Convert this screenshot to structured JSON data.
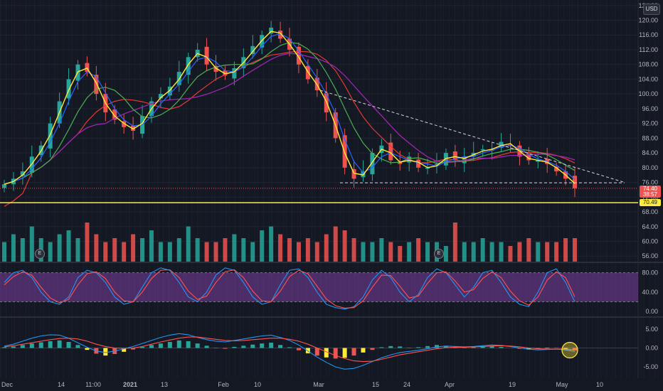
{
  "currency_badge": "USD",
  "price_tags": {
    "last": "74.40",
    "countdown": "38:57",
    "level": "70.49"
  },
  "earnings_marker": "E",
  "colors": {
    "up": "#26a69a",
    "down": "#ef5350",
    "ema_fast": "#ffeb3b",
    "ema_mid": "#2962ff",
    "sma_50": "#4caf50",
    "sma_100": "#9c27b0",
    "sma_200": "#e53935",
    "level_line": "#ffeb3b",
    "stoch_k": "#2196f3",
    "stoch_d": "#ff5252",
    "stoch_band": "#7b3fa0",
    "macd_line": "#2196f3",
    "signal_line": "#ff5252",
    "hist_pos": "#26a69a",
    "hist_neg": "#ffeb3b",
    "hist_neg2": "#ef5350"
  },
  "chart_data": [
    {
      "type": "candlestick",
      "pane": "price",
      "y_ticks": [
        124.0,
        120.0,
        116.0,
        112.0,
        108.0,
        104.0,
        100.0,
        96.0,
        92.0,
        88.0,
        84.0,
        80.0,
        76.0,
        72.0,
        68.0,
        64.0,
        60.0,
        56.0
      ],
      "y_tick_labels": [
        "124.00",
        "120.00",
        "116.00",
        "112.00",
        "108.00",
        "104.00",
        "100.00",
        "96.00",
        "92.00",
        "88.00",
        "84.00",
        "80.00",
        "76.00",
        "72.00",
        "68.00",
        "64.00",
        "60.00",
        "56.00"
      ],
      "ylim": [
        54.5,
        125.5
      ],
      "x_labels": [
        "Dec",
        "14",
        "11:00",
        "2021",
        "13",
        "Feb",
        "10",
        "Mar",
        "15",
        "24",
        "Apr",
        "19",
        "May",
        "10"
      ],
      "close_path": [
        75.5,
        77,
        79,
        83,
        86,
        92,
        98,
        104,
        108,
        106,
        100,
        95,
        93,
        91,
        90,
        94,
        98,
        100,
        102,
        106,
        110,
        112,
        108,
        106,
        105,
        107,
        110,
        113,
        116,
        118,
        115,
        112,
        108,
        104,
        101,
        95,
        88,
        80,
        77,
        79,
        84,
        86,
        82,
        81,
        83,
        80,
        80,
        81,
        84,
        82,
        83,
        84,
        85,
        85,
        87,
        86,
        83,
        82,
        82,
        81,
        79,
        77,
        74.4
      ],
      "last_close": 74.4,
      "levels": [
        {
          "value": 70.49,
          "label": "70.49"
        },
        {
          "value": 75.9,
          "label": ""
        }
      ],
      "trendline": {
        "from": [
          101,
          "Mar"
        ],
        "to": [
          76,
          "May"
        ]
      },
      "indicators": [
        "EMA fast",
        "EMA mid",
        "SMA 50",
        "SMA 100",
        "SMA 200"
      ]
    },
    {
      "type": "bar",
      "pane": "volume",
      "series": [
        {
          "values": [
            0.5,
            0.7,
            0.6,
            0.9,
            0.6,
            0.5,
            0.7,
            0.8,
            0.6,
            1.0,
            0.7,
            0.5,
            0.6,
            0.5,
            0.7,
            0.6,
            0.8,
            0.5,
            0.5,
            0.6,
            0.9,
            0.6,
            0.5,
            0.5,
            0.6,
            0.7,
            0.6,
            0.5,
            0.8,
            0.9,
            0.7,
            0.6,
            0.5,
            0.6,
            0.5,
            0.7,
            0.9,
            0.8,
            0.6,
            0.5,
            0.5,
            0.6,
            0.5,
            0.4,
            0.5,
            0.6,
            0.5,
            0.5,
            0.4,
            1.0,
            0.5,
            0.5,
            0.6,
            0.5,
            0.5,
            0.4,
            0.5,
            0.6,
            0.5,
            0.5,
            0.5,
            0.6,
            0.6
          ]
        }
      ]
    },
    {
      "type": "line",
      "pane": "stochastic",
      "y_ticks": [
        80.0,
        40.0,
        0.0
      ],
      "y_tick_labels": [
        "80.00",
        "40.00",
        "0.00"
      ],
      "ylim": [
        -10,
        100
      ],
      "band": [
        20,
        80
      ],
      "series": [
        {
          "name": "",
          "values": [
            60,
            80,
            85,
            70,
            40,
            20,
            15,
            30,
            70,
            85,
            80,
            60,
            30,
            15,
            20,
            50,
            80,
            90,
            85,
            60,
            30,
            20,
            40,
            75,
            90,
            85,
            60,
            30,
            15,
            20,
            55,
            85,
            88,
            70,
            40,
            15,
            8,
            5,
            10,
            30,
            65,
            85,
            70,
            40,
            20,
            35,
            70,
            88,
            80,
            55,
            30,
            50,
            80,
            85,
            60,
            30,
            15,
            10,
            40,
            80,
            88,
            60,
            20
          ]
        },
        {
          "name": "",
          "values": [
            55,
            72,
            82,
            75,
            50,
            28,
            18,
            25,
            55,
            78,
            82,
            68,
            40,
            22,
            20,
            40,
            68,
            85,
            86,
            70,
            42,
            25,
            32,
            60,
            82,
            86,
            70,
            42,
            22,
            20,
            42,
            72,
            85,
            78,
            52,
            26,
            12,
            7,
            8,
            22,
            50,
            75,
            74,
            52,
            28,
            32,
            58,
            80,
            82,
            63,
            40,
            45,
            68,
            82,
            70,
            42,
            22,
            13,
            30,
            65,
            82,
            70,
            30
          ]
        }
      ]
    },
    {
      "type": "bar",
      "pane": "macd",
      "y_ticks": [
        5.0,
        0.0,
        -5.0
      ],
      "y_tick_labels": [
        "5.00",
        "0.00",
        "-5.00"
      ],
      "ylim": [
        -8,
        8
      ],
      "histogram": [
        0.2,
        0.4,
        0.8,
        1.2,
        1.5,
        1.8,
        2.0,
        1.6,
        0.8,
        -0.5,
        -1.5,
        -2.0,
        -1.6,
        -1.0,
        -0.4,
        0.3,
        0.8,
        1.2,
        1.6,
        2.0,
        1.8,
        1.2,
        0.6,
        0.1,
        -0.2,
        0.3,
        0.6,
        0.9,
        1.2,
        1.4,
        0.8,
        0.2,
        -0.6,
        -1.4,
        -2.0,
        -2.5,
        -2.8,
        -2.6,
        -2.0,
        -1.2,
        -0.5,
        0.2,
        0.5,
        0.4,
        0.1,
        0.2,
        0.5,
        0.8,
        0.6,
        0.3,
        0.1,
        0.2,
        0.4,
        0.5,
        0.3,
        0.0,
        -0.2,
        -0.4,
        -0.3,
        -0.1,
        0.1,
        -0.2,
        -0.6
      ],
      "series": [
        {
          "name": "",
          "values": [
            0.5,
            1.0,
            1.8,
            2.6,
            3.2,
            3.5,
            3.4,
            2.6,
            1.4,
            0.2,
            -0.8,
            -1.2,
            -0.8,
            -0.2,
            0.4,
            1.2,
            2.0,
            2.8,
            3.4,
            3.8,
            3.5,
            2.8,
            2.2,
            1.8,
            1.6,
            2.0,
            2.4,
            2.8,
            3.2,
            3.4,
            2.8,
            2.0,
            0.8,
            -0.8,
            -2.4,
            -3.8,
            -5.0,
            -5.6,
            -5.4,
            -4.6,
            -3.6,
            -2.6,
            -1.8,
            -1.2,
            -0.9,
            -0.6,
            -0.2,
            0.3,
            0.5,
            0.4,
            0.3,
            0.4,
            0.6,
            0.8,
            0.7,
            0.4,
            0.0,
            -0.3,
            -0.5,
            -0.4,
            -0.3,
            -0.5,
            -0.9
          ]
        },
        {
          "name": "",
          "values": [
            0.3,
            0.6,
            1.0,
            1.4,
            1.8,
            2.2,
            2.5,
            2.6,
            2.4,
            1.8,
            1.0,
            0.4,
            0.0,
            -0.1,
            0.0,
            0.4,
            1.0,
            1.6,
            2.1,
            2.6,
            2.9,
            2.9,
            2.6,
            2.3,
            2.0,
            1.9,
            2.0,
            2.2,
            2.4,
            2.6,
            2.6,
            2.3,
            1.8,
            1.0,
            0.0,
            -1.0,
            -2.0,
            -2.8,
            -3.4,
            -3.6,
            -3.5,
            -3.0,
            -2.4,
            -1.8,
            -1.4,
            -1.0,
            -0.6,
            -0.2,
            0.1,
            0.2,
            0.2,
            0.3,
            0.4,
            0.5,
            0.6,
            0.5,
            0.3,
            0.0,
            -0.2,
            -0.3,
            -0.3,
            -0.3,
            -0.5
          ]
        }
      ]
    }
  ]
}
